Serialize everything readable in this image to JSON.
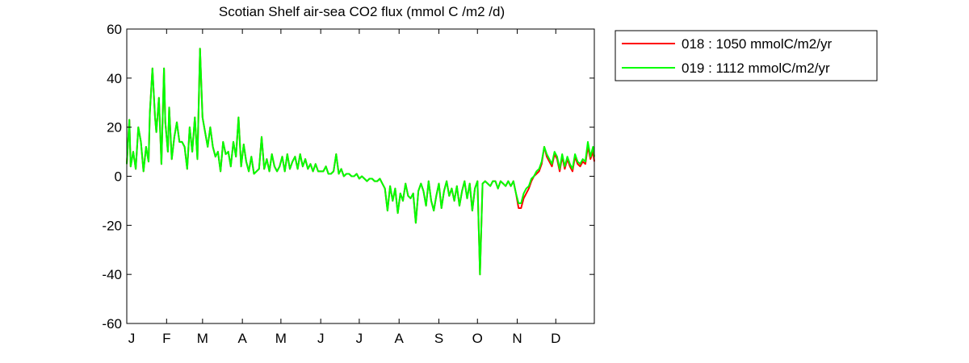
{
  "chart_data": {
    "type": "line",
    "title": "Scotian Shelf  air-sea CO2 flux (mmol C /m2 /d)",
    "xlabel": "",
    "ylabel": "",
    "xlim": [
      1,
      365
    ],
    "ylim": [
      -60,
      60
    ],
    "grid": false,
    "legend_position": "outside-top-right",
    "yticks": [
      -60,
      -40,
      -20,
      0,
      20,
      40,
      60
    ],
    "ytick_labels": [
      "-60",
      "-40",
      "-20",
      "0",
      "20",
      "40",
      "60"
    ],
    "xticks": [
      1,
      32,
      60,
      91,
      121,
      152,
      182,
      213,
      244,
      274,
      305,
      335
    ],
    "xtick_labels": [
      "J",
      "F",
      "M",
      "A",
      "M",
      "J",
      "J",
      "A",
      "S",
      "O",
      "N",
      "D"
    ],
    "series": [
      {
        "name": "018 : 1050 mmolC/m2/yr",
        "color": "#ff0000",
        "x": [
          1,
          3,
          4,
          6,
          8,
          10,
          12,
          14,
          16,
          18,
          19,
          21,
          23,
          24,
          26,
          28,
          30,
          31,
          33,
          34,
          36,
          38,
          40,
          42,
          44,
          46,
          48,
          50,
          52,
          54,
          56,
          58,
          60,
          62,
          64,
          66,
          68,
          70,
          72,
          74,
          76,
          78,
          80,
          82,
          84,
          86,
          88,
          90,
          92,
          94,
          96,
          98,
          100,
          102,
          104,
          106,
          108,
          110,
          112,
          114,
          116,
          118,
          120,
          122,
          124,
          126,
          128,
          130,
          132,
          134,
          136,
          138,
          140,
          142,
          144,
          146,
          148,
          150,
          152,
          154,
          156,
          158,
          160,
          162,
          164,
          166,
          168,
          170,
          172,
          174,
          176,
          178,
          180,
          182,
          184,
          186,
          188,
          190,
          192,
          194,
          196,
          198,
          200,
          202,
          204,
          206,
          208,
          210,
          212,
          214,
          216,
          218,
          220,
          222,
          224,
          226,
          228,
          230,
          232,
          234,
          236,
          238,
          240,
          242,
          244,
          246,
          248,
          250,
          252,
          254,
          256,
          258,
          260,
          262,
          264,
          266,
          268,
          270,
          272,
          274,
          276,
          278,
          280,
          282,
          284,
          286,
          288,
          290,
          292,
          294,
          296,
          298,
          300,
          302,
          304,
          306,
          308,
          310,
          312,
          314,
          316,
          318,
          320,
          322,
          324,
          326,
          328,
          330,
          332,
          334,
          336,
          338,
          340,
          342,
          344,
          346,
          348,
          350,
          352,
          354,
          356,
          358,
          360,
          362,
          364,
          365
        ],
        "y": [
          5,
          23,
          4,
          10,
          3,
          20,
          14,
          2,
          12,
          6,
          26,
          44,
          24,
          18,
          32,
          5,
          44,
          22,
          10,
          28,
          7,
          16,
          22,
          14,
          14,
          12,
          3,
          20,
          10,
          24,
          7,
          52,
          24,
          18,
          12,
          20,
          12,
          8,
          10,
          2,
          14,
          9,
          10,
          4,
          14,
          8,
          24,
          4,
          13,
          6,
          2,
          8,
          1,
          2,
          3,
          16,
          3,
          7,
          2,
          9,
          4,
          2,
          4,
          8,
          2,
          9,
          3,
          6,
          8,
          3,
          9,
          4,
          7,
          3,
          5,
          2,
          5,
          2,
          2,
          2,
          4,
          1,
          1,
          2,
          9,
          1,
          3,
          0,
          1,
          1,
          0,
          0,
          1,
          -1,
          0,
          -1,
          -2,
          -1,
          -1,
          -2,
          -2,
          -1,
          -3,
          -5,
          -14,
          -4,
          -10,
          -5,
          -15,
          -7,
          -10,
          -3,
          -8,
          -9,
          -7,
          -19,
          -6,
          -3,
          -6,
          -12,
          -2,
          -10,
          -14,
          -8,
          -3,
          -13,
          -6,
          -2,
          -8,
          -5,
          -10,
          -4,
          -12,
          -6,
          -2,
          -9,
          -3,
          -14,
          -5,
          -2,
          -40,
          -3,
          -2,
          -3,
          -4,
          -2,
          -2,
          -5,
          -2,
          -3,
          -4,
          -2,
          -4,
          -2,
          -7,
          -13,
          -13,
          -9,
          -7,
          -5,
          -2,
          0,
          1,
          2,
          5,
          12,
          8,
          6,
          4,
          9,
          7,
          2,
          8,
          3,
          7,
          4,
          2,
          8,
          5,
          4,
          6,
          5,
          12,
          7,
          10,
          6
        ]
      },
      {
        "name": "019 : 1112 mmolC/m2/yr",
        "color": "#00ff00",
        "x": [
          1,
          3,
          4,
          6,
          8,
          10,
          12,
          14,
          16,
          18,
          19,
          21,
          23,
          24,
          26,
          28,
          30,
          31,
          33,
          34,
          36,
          38,
          40,
          42,
          44,
          46,
          48,
          50,
          52,
          54,
          56,
          58,
          60,
          62,
          64,
          66,
          68,
          70,
          72,
          74,
          76,
          78,
          80,
          82,
          84,
          86,
          88,
          90,
          92,
          94,
          96,
          98,
          100,
          102,
          104,
          106,
          108,
          110,
          112,
          114,
          116,
          118,
          120,
          122,
          124,
          126,
          128,
          130,
          132,
          134,
          136,
          138,
          140,
          142,
          144,
          146,
          148,
          150,
          152,
          154,
          156,
          158,
          160,
          162,
          164,
          166,
          168,
          170,
          172,
          174,
          176,
          178,
          180,
          182,
          184,
          186,
          188,
          190,
          192,
          194,
          196,
          198,
          200,
          202,
          204,
          206,
          208,
          210,
          212,
          214,
          216,
          218,
          220,
          222,
          224,
          226,
          228,
          230,
          232,
          234,
          236,
          238,
          240,
          242,
          244,
          246,
          248,
          250,
          252,
          254,
          256,
          258,
          260,
          262,
          264,
          266,
          268,
          270,
          272,
          274,
          276,
          278,
          280,
          282,
          284,
          286,
          288,
          290,
          292,
          294,
          296,
          298,
          300,
          302,
          304,
          306,
          308,
          310,
          312,
          314,
          316,
          318,
          320,
          322,
          324,
          326,
          328,
          330,
          332,
          334,
          336,
          338,
          340,
          342,
          344,
          346,
          348,
          350,
          352,
          354,
          356,
          358,
          360,
          362,
          364,
          365
        ],
        "y": [
          5,
          23,
          4,
          10,
          3,
          20,
          14,
          2,
          12,
          6,
          26,
          44,
          24,
          18,
          32,
          5,
          44,
          22,
          10,
          28,
          7,
          16,
          22,
          14,
          14,
          12,
          3,
          20,
          10,
          24,
          7,
          52,
          24,
          18,
          12,
          20,
          12,
          8,
          10,
          2,
          14,
          9,
          10,
          4,
          14,
          8,
          24,
          4,
          13,
          6,
          2,
          8,
          1,
          2,
          3,
          16,
          3,
          7,
          2,
          9,
          4,
          2,
          4,
          8,
          2,
          9,
          3,
          6,
          8,
          3,
          9,
          4,
          7,
          3,
          5,
          2,
          5,
          2,
          2,
          2,
          4,
          1,
          1,
          2,
          9,
          1,
          3,
          0,
          1,
          1,
          0,
          0,
          1,
          -1,
          0,
          -1,
          -2,
          -1,
          -1,
          -2,
          -2,
          -1,
          -3,
          -5,
          -14,
          -4,
          -10,
          -5,
          -15,
          -7,
          -10,
          -3,
          -8,
          -9,
          -7,
          -19,
          -6,
          -3,
          -6,
          -12,
          -2,
          -10,
          -14,
          -8,
          -3,
          -13,
          -6,
          -2,
          -8,
          -5,
          -10,
          -4,
          -12,
          -6,
          -2,
          -9,
          -3,
          -14,
          -5,
          -2,
          -40,
          -3,
          -2,
          -3,
          -4,
          -2,
          -2,
          -5,
          -2,
          -3,
          -4,
          -2,
          -4,
          -2,
          -7,
          -11,
          -11,
          -7,
          -5,
          -4,
          -1,
          0,
          2,
          3,
          6,
          12,
          9,
          7,
          5,
          10,
          8,
          3,
          9,
          4,
          8,
          5,
          3,
          9,
          6,
          5,
          7,
          6,
          14,
          8,
          12,
          8
        ]
      }
    ]
  }
}
